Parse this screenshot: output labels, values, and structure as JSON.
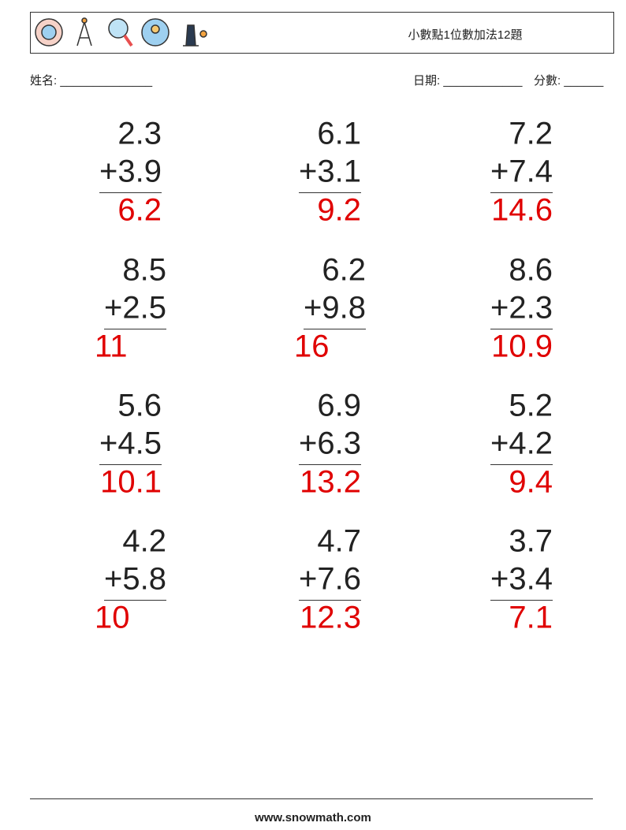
{
  "header": {
    "title": "小數點1位數加法12題"
  },
  "fields": {
    "name": "姓名: ______________",
    "date": "日期: ____________",
    "score": "分數: ______"
  },
  "problems": [
    {
      "top": "2.3",
      "addend": "+3.9",
      "answer": "6.2"
    },
    {
      "top": "6.1",
      "addend": "+3.1",
      "answer": "9.2"
    },
    {
      "top": "7.2",
      "addend": "+7.4",
      "answer": "14.6"
    },
    {
      "top": "8.5",
      "addend": "+2.5",
      "answer": "11"
    },
    {
      "top": "6.2",
      "addend": "+9.8",
      "answer": "16"
    },
    {
      "top": "8.6",
      "addend": "+2.3",
      "answer": "10.9"
    },
    {
      "top": "5.6",
      "addend": "+4.5",
      "answer": "10.1"
    },
    {
      "top": "6.9",
      "addend": "+6.3",
      "answer": "13.2"
    },
    {
      "top": "5.2",
      "addend": "+4.2",
      "answer": "9.4"
    },
    {
      "top": "4.2",
      "addend": "+5.8",
      "answer": "10"
    },
    {
      "top": "4.7",
      "addend": "+7.6",
      "answer": "12.3"
    },
    {
      "top": "3.7",
      "addend": "+3.4",
      "answer": "7.1"
    }
  ],
  "footer": {
    "site": "www.snowmath.com"
  }
}
